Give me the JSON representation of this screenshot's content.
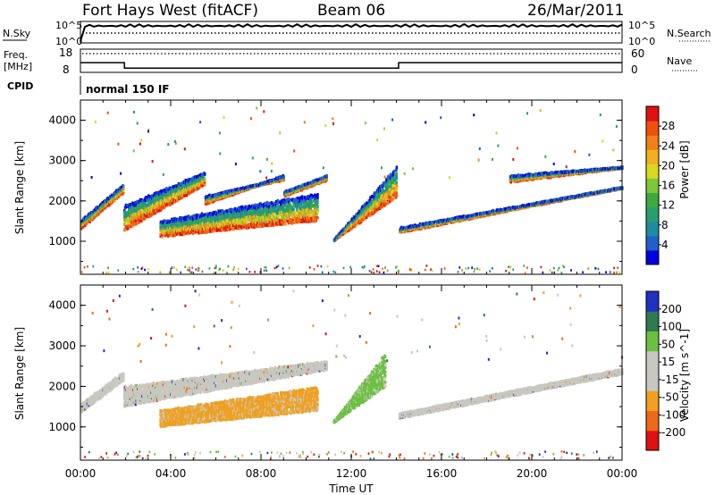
{
  "header": {
    "title": "Fort Hays West (fitACF)",
    "beam": "Beam 06",
    "date": "26/Mar/2011"
  },
  "top_panel": {
    "left_label": "N.Sky",
    "right_label": "N.Search",
    "left_ticks": [
      "10^5",
      "10^0"
    ],
    "right_ticks": [
      "10^5",
      "10^0"
    ]
  },
  "freq_panel": {
    "left_label": "Freq.",
    "left_unit": "[MHz]",
    "right_label": "Nave",
    "left_ticks": [
      "18",
      "8"
    ],
    "right_ticks": [
      "60",
      "0"
    ],
    "freq_values": [
      {
        "t": 0.0,
        "mhz": 13.2
      },
      {
        "t": 1.95,
        "mhz": 10.3
      },
      {
        "t": 14.1,
        "mhz": 13.2
      },
      {
        "t": 24.0,
        "mhz": 13.2
      }
    ]
  },
  "cpid": {
    "label": "CPID",
    "value": "normal 150 IF"
  },
  "axes": {
    "xlabel": "Time UT",
    "x_ticks": [
      "00:00",
      "04:00",
      "08:00",
      "12:00",
      "16:00",
      "20:00",
      "00:00"
    ],
    "ylabel": "Slant Range [km]",
    "y_ticks": [
      "1000",
      "2000",
      "3000",
      "4000"
    ]
  },
  "chart_data": [
    {
      "type": "heatmap",
      "title": "",
      "xlabel": "Time UT",
      "ylabel": "Slant Range [km]",
      "xlim": [
        0,
        24
      ],
      "ylim": [
        180,
        4500
      ],
      "colorbar": {
        "label": "Power [dB]",
        "ticks": [
          "4",
          "8",
          "12",
          "16",
          "20",
          "24",
          "28"
        ],
        "colors": [
          "#0000e0",
          "#2060c8",
          "#1e8ca0",
          "#2a9e6e",
          "#3caa3c",
          "#7cc83a",
          "#d8d820",
          "#f0b020",
          "#f08018",
          "#ee5010",
          "#e01010"
        ]
      },
      "bands": [
        {
          "name": "A",
          "t0": 0.0,
          "t1": 1.9,
          "r0": [
            1300,
            1500
          ],
          "r1": [
            2200,
            2400
          ]
        },
        {
          "name": "B",
          "t0": 1.9,
          "t1": 5.5,
          "r0": [
            1250,
            1900
          ],
          "r1": [
            2400,
            2700
          ]
        },
        {
          "name": "C",
          "t0": 5.5,
          "t1": 9.0,
          "r0": [
            1900,
            2100
          ],
          "r1": [
            2600,
            2500
          ]
        },
        {
          "name": "D",
          "t0": 9.0,
          "t1": 10.9,
          "r0": [
            2100,
            2200
          ],
          "r1": [
            2500,
            2600
          ]
        },
        {
          "name": "E",
          "t0": 3.5,
          "t1": 10.5,
          "r0": [
            1100,
            1500
          ],
          "r1": [
            1500,
            2200
          ]
        },
        {
          "name": "F",
          "t0": 11.2,
          "t1": 14.0,
          "r0": [
            1000,
            1000
          ],
          "r1": [
            2900,
            2100
          ]
        },
        {
          "name": "G",
          "t0": 14.1,
          "t1": 24.0,
          "r0": [
            1200,
            1300
          ],
          "r1": [
            2300,
            2300
          ]
        },
        {
          "name": "H",
          "t0": 19.0,
          "t1": 24.0,
          "r0": [
            2450,
            2600
          ],
          "r1": [
            2800,
            2800
          ]
        }
      ]
    },
    {
      "type": "heatmap",
      "title": "",
      "xlabel": "Time UT",
      "ylabel": "Slant Range [km]",
      "xlim": [
        0,
        24
      ],
      "ylim": [
        180,
        4500
      ],
      "colorbar": {
        "label": "Velocity [m s^-1]",
        "ticks": [
          "200",
          "100",
          "50",
          "15",
          "-15",
          "-50",
          "-100",
          "-200"
        ],
        "colors": [
          "#2030c0",
          "#2f7a50",
          "#6cc040",
          "#c8c8c0",
          "#c8c8c0",
          "#f0a020",
          "#ee6a18",
          "#e01010"
        ]
      },
      "bands": [
        {
          "name": "A",
          "t0": 0.0,
          "t1": 1.9,
          "r0": [
            1350,
            1550
          ],
          "r1": [
            2150,
            2350
          ],
          "vel": "grey"
        },
        {
          "name": "B",
          "t0": 1.9,
          "t1": 10.9,
          "r0": [
            1500,
            2000
          ],
          "r1": [
            2400,
            2600
          ],
          "vel": "grey"
        },
        {
          "name": "E",
          "t0": 3.5,
          "t1": 10.5,
          "r0": [
            1000,
            1400
          ],
          "r1": [
            1400,
            2000
          ],
          "vel": "orange"
        },
        {
          "name": "F",
          "t0": 11.2,
          "t1": 13.5,
          "r0": [
            1100,
            1100
          ],
          "r1": [
            2900,
            2000
          ],
          "vel": "green"
        },
        {
          "name": "G",
          "t0": 14.1,
          "t1": 24.0,
          "r0": [
            1200,
            1300
          ],
          "r1": [
            2300,
            2400
          ],
          "vel": "grey"
        }
      ]
    }
  ]
}
